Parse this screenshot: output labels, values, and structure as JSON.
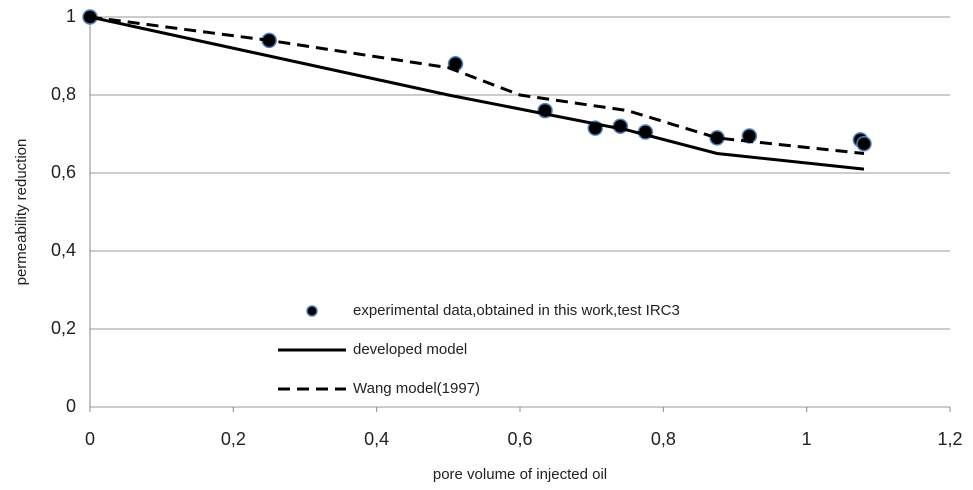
{
  "chart_data": {
    "type": "line",
    "x_label": "pore volume of injected oil",
    "y_label": "permeability reduction",
    "xlim": [
      0,
      1.2
    ],
    "xticks": [
      0,
      {
        "value": 0.2,
        "label": "0,2"
      },
      {
        "value": 0.4,
        "label": "0,4"
      },
      {
        "value": 0.6,
        "label": "0,6"
      },
      {
        "value": 0.8,
        "label": "0,8"
      },
      1,
      {
        "value": 1.2,
        "label": "1,2"
      }
    ],
    "ylim": [
      0,
      1
    ],
    "yticks": [
      0,
      {
        "value": 0.2,
        "label": "0,2"
      },
      {
        "value": 0.4,
        "label": "0,4"
      },
      {
        "value": 0.6,
        "label": "0,6"
      },
      {
        "value": 0.8,
        "label": "0,8"
      },
      1
    ],
    "grid": true,
    "series": [
      {
        "name": "experimental data,obtained in this work,test IRC3",
        "style": "markers",
        "color": "#000000",
        "x": [
          0,
          0.25,
          0.51,
          0.635,
          0.705,
          0.74,
          0.775,
          0.875,
          0.92,
          1.075,
          1.08
        ],
        "values": [
          1,
          0.94,
          0.88,
          0.76,
          0.715,
          0.72,
          0.705,
          0.69,
          0.695,
          0.685,
          0.675
        ]
      },
      {
        "name": "developed model",
        "style": "solid",
        "color": "#000000",
        "x": [
          0,
          0.25,
          0.5,
          0.75,
          0.875,
          1.08
        ],
        "values": [
          1,
          0.9,
          0.8,
          0.71,
          0.65,
          0.61
        ]
      },
      {
        "name": "Wang model(1997)",
        "style": "dashed",
        "color": "#000000",
        "x": [
          0,
          0.25,
          0.5,
          0.6,
          0.75,
          0.875,
          1.08
        ],
        "values": [
          1,
          0.94,
          0.87,
          0.8,
          0.76,
          0.69,
          0.65
        ]
      }
    ]
  }
}
